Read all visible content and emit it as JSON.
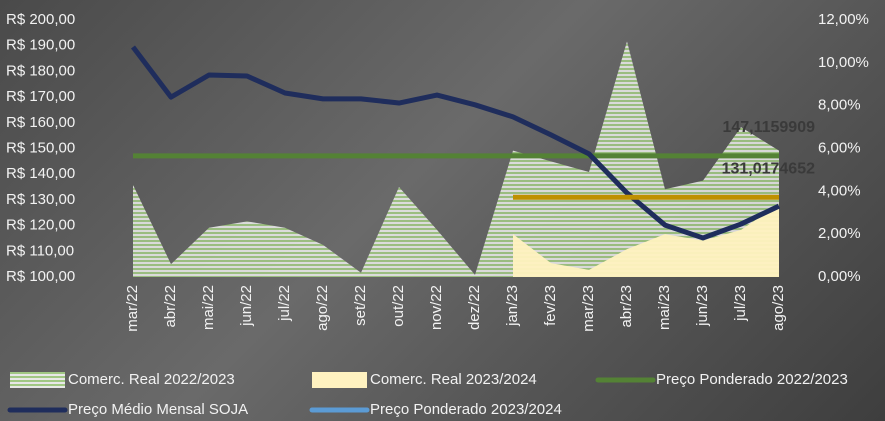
{
  "chart_data": {
    "type": "line",
    "categories": [
      "mar/22",
      "abr/22",
      "mai/22",
      "jun/22",
      "jul/22",
      "ago/22",
      "set/22",
      "out/22",
      "nov/22",
      "dez/22",
      "jan/23",
      "fev/23",
      "mar/23",
      "abr/23",
      "mai/23",
      "jun/23",
      "jul/23",
      "ago/23"
    ],
    "ylim": [
      100,
      200
    ],
    "yticks": [
      {
        "value": 100,
        "label": "R$ 100,00"
      },
      {
        "value": 110,
        "label": "R$ 110,00"
      },
      {
        "value": 120,
        "label": "R$ 120,00"
      },
      {
        "value": 130,
        "label": "R$ 130,00"
      },
      {
        "value": 140,
        "label": "R$ 140,00"
      },
      {
        "value": 150,
        "label": "R$ 150,00"
      },
      {
        "value": 160,
        "label": "R$ 160,00"
      },
      {
        "value": 170,
        "label": "R$ 170,00"
      },
      {
        "value": 180,
        "label": "R$ 180,00"
      },
      {
        "value": 190,
        "label": "R$ 190,00"
      },
      {
        "value": 200,
        "label": "R$ 200,00"
      }
    ],
    "y2lim": [
      0,
      12
    ],
    "y2ticks": [
      {
        "value": 0,
        "label": "0,00%"
      },
      {
        "value": 2,
        "label": "2,00%"
      },
      {
        "value": 4,
        "label": "4,00%"
      },
      {
        "value": 6,
        "label": "6,00%"
      },
      {
        "value": 8,
        "label": "8,00%"
      },
      {
        "value": 10,
        "label": "10,00%"
      },
      {
        "value": 12,
        "label": "12,00%"
      }
    ],
    "series": [
      {
        "name": "Comerc. Real 2022/2023",
        "kind": "area",
        "axis": "y2",
        "color": "#8fbf6a",
        "values": [
          4.3,
          0.6,
          2.3,
          2.6,
          2.3,
          1.5,
          0.2,
          4.2,
          2.2,
          0.1,
          5.9,
          5.4,
          4.9,
          11.0,
          4.1,
          4.5,
          7.0,
          5.9
        ]
      },
      {
        "name": "Comerc. Real 2023/2024",
        "kind": "area",
        "axis": "y2",
        "color": "#fff2c0",
        "values": [
          null,
          null,
          null,
          null,
          null,
          null,
          null,
          null,
          null,
          null,
          2.0,
          0.65,
          0.33,
          1.3,
          2.0,
          1.7,
          2.2,
          3.4
        ]
      },
      {
        "name": "Preço Ponderado 2022/2023",
        "kind": "line",
        "color": "#548235",
        "values": [
          147.1159909,
          147.1159909,
          147.1159909,
          147.1159909,
          147.1159909,
          147.1159909,
          147.1159909,
          147.1159909,
          147.1159909,
          147.1159909,
          147.1159909,
          147.1159909,
          147.1159909,
          147.1159909,
          147.1159909,
          147.1159909,
          147.1159909,
          147.1159909
        ],
        "value_labels": [
          null,
          null,
          null,
          null,
          null,
          null,
          null,
          null,
          null,
          null,
          null,
          null,
          null,
          null,
          null,
          null,
          null,
          "147,1159909"
        ]
      },
      {
        "name": "Preço Médio Mensal SOJA",
        "kind": "line",
        "color": "#1f2d5c",
        "values": [
          189.5,
          170.0,
          178.6,
          178.2,
          171.6,
          169.3,
          169.3,
          167.7,
          170.8,
          167.0,
          162.3,
          155.3,
          147.9,
          132.7,
          120.2,
          115.2,
          120.6,
          127.6
        ]
      },
      {
        "name": "Preço Ponderado 2023/2024",
        "kind": "line",
        "color": "#5b9bd5",
        "line_color": "#bf9000",
        "values": [
          null,
          null,
          null,
          null,
          null,
          null,
          null,
          null,
          null,
          null,
          131.0174652,
          131.0174652,
          131.0174652,
          131.0174652,
          131.0174652,
          131.0174652,
          131.0174652,
          131.0174652
        ],
        "value_labels": [
          null,
          null,
          null,
          null,
          null,
          null,
          null,
          null,
          null,
          null,
          null,
          null,
          null,
          null,
          null,
          null,
          null,
          "131,0174652"
        ]
      }
    ]
  }
}
